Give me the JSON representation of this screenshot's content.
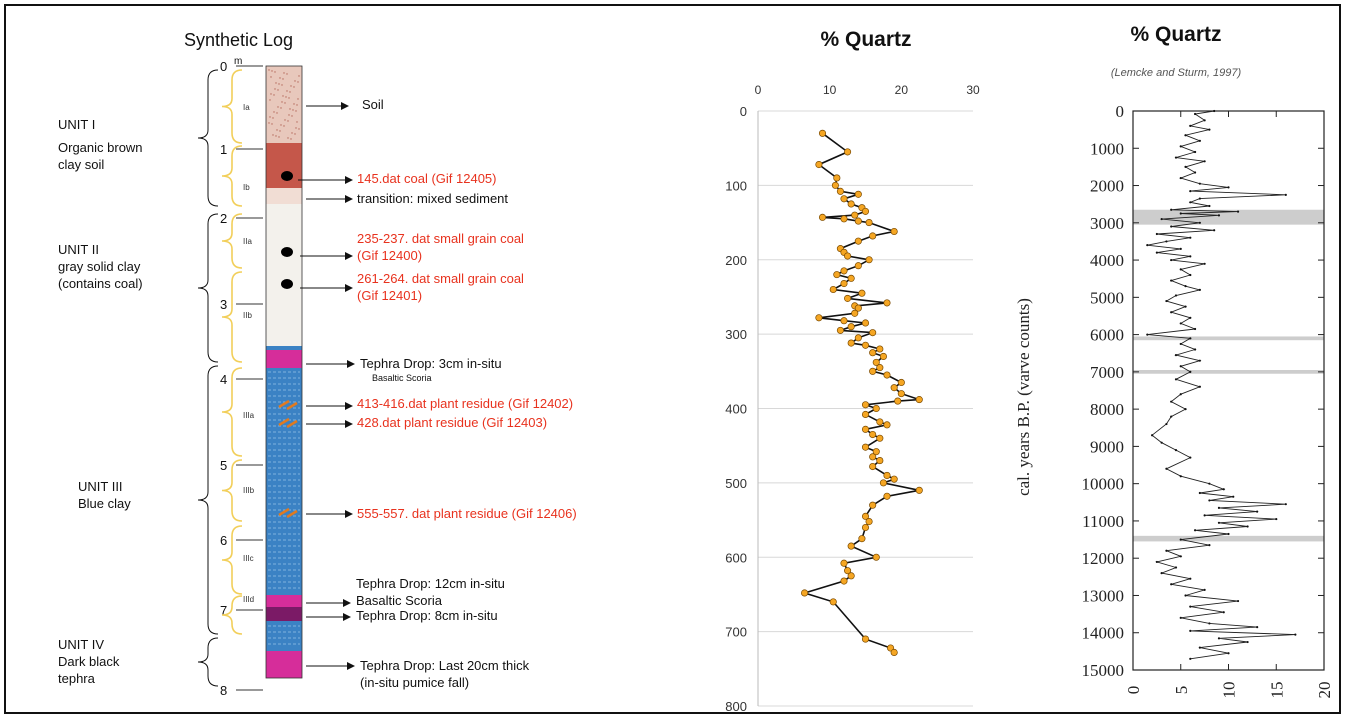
{
  "synthetic_log": {
    "title": "Synthetic Log",
    "unit_label": "m",
    "depth_ticks": [
      "0",
      "1",
      "2",
      "3",
      "4",
      "5",
      "6",
      "7",
      "8"
    ],
    "units": [
      {
        "lines": [
          "UNIT I",
          "Organic brown",
          "clay soil"
        ]
      },
      {
        "lines": [
          "UNIT II",
          "gray solid clay",
          "",
          "(contains coal)"
        ]
      },
      {
        "lines": [
          "UNIT III",
          "Blue clay"
        ]
      },
      {
        "lines": [
          "UNIT IV",
          "Dark black",
          "tephra"
        ]
      }
    ],
    "subunits": [
      "Ia",
      "Ib",
      "IIa",
      "IIb",
      "IIIa",
      "IIIb",
      "IIIc",
      "IIId"
    ],
    "annotations": [
      {
        "lines": [
          "Soil"
        ],
        "color": "#111111"
      },
      {
        "lines": [
          "145.dat coal (Gif 12405)"
        ],
        "color": "#e8321e"
      },
      {
        "lines": [
          "transition: mixed sediment"
        ],
        "color": "#111111"
      },
      {
        "lines": [
          "235-237. dat small grain coal",
          "(Gif 12400)"
        ],
        "color": "#e8321e"
      },
      {
        "lines": [
          "261-264. dat small grain coal",
          "(Gif 12401)"
        ],
        "color": "#e8321e"
      },
      {
        "lines": [
          "Tephra Drop: 3cm in-situ"
        ],
        "sub": "Basaltic Scoria",
        "color": "#111111"
      },
      {
        "lines": [
          "413-416.dat plant residue (Gif 12402)"
        ],
        "color": "#e8321e"
      },
      {
        "lines": [
          "428.dat plant residue (Gif 12403)"
        ],
        "color": "#e8321e"
      },
      {
        "lines": [
          "555-557. dat plant residue (Gif 12406)"
        ],
        "color": "#e8321e"
      },
      {
        "lines": [
          "Tephra Drop: 12cm in-situ",
          "Basaltic Scoria"
        ],
        "color": "#111111"
      },
      {
        "lines": [
          "Tephra Drop: 8cm in-situ"
        ],
        "color": "#111111"
      },
      {
        "lines": [
          "Tephra Drop: Last 20cm thick",
          " (in-situ pumice fall)"
        ],
        "color": "#111111"
      }
    ],
    "colors": {
      "soil": "#e8c8bc",
      "coal_layer": "#c5574a",
      "transition": "#f1ddd4",
      "gray_clay": "#f3f1ec",
      "blue_clay": "#3b82c4",
      "tephra": "#d62d9a",
      "dark_tephra": "#7b1a66",
      "bracket": "#f2cf5a",
      "plant": "#e07a1f"
    }
  },
  "chart_data": [
    {
      "type": "line",
      "title": "% Quartz",
      "xlabel": "",
      "ylabel": "",
      "xlim": [
        0,
        30
      ],
      "ylim": [
        0,
        800
      ],
      "y_inverted": true,
      "x_ticks": [
        "0",
        "10",
        "20",
        "30"
      ],
      "y_ticks": [
        "0",
        "100",
        "200",
        "300",
        "400",
        "500",
        "600",
        "700",
        "800"
      ],
      "grid": "horizontal",
      "marker_color": "#f5a623",
      "line_color": "#111111",
      "points": [
        {
          "x": 9,
          "y": 30
        },
        {
          "x": 12.5,
          "y": 55
        },
        {
          "x": 8.5,
          "y": 72
        },
        {
          "x": 11,
          "y": 90
        },
        {
          "x": 10.8,
          "y": 100
        },
        {
          "x": 11.5,
          "y": 108
        },
        {
          "x": 14,
          "y": 112
        },
        {
          "x": 12,
          "y": 118
        },
        {
          "x": 13,
          "y": 125
        },
        {
          "x": 14.5,
          "y": 130
        },
        {
          "x": 15,
          "y": 135
        },
        {
          "x": 13.5,
          "y": 140
        },
        {
          "x": 9,
          "y": 143
        },
        {
          "x": 12,
          "y": 145
        },
        {
          "x": 14,
          "y": 148
        },
        {
          "x": 15.5,
          "y": 150
        },
        {
          "x": 19,
          "y": 162
        },
        {
          "x": 16,
          "y": 168
        },
        {
          "x": 14,
          "y": 175
        },
        {
          "x": 11.5,
          "y": 185
        },
        {
          "x": 12,
          "y": 190
        },
        {
          "x": 12.5,
          "y": 195
        },
        {
          "x": 15.5,
          "y": 200
        },
        {
          "x": 14,
          "y": 208
        },
        {
          "x": 12,
          "y": 215
        },
        {
          "x": 11,
          "y": 220
        },
        {
          "x": 13,
          "y": 225
        },
        {
          "x": 12,
          "y": 232
        },
        {
          "x": 10.5,
          "y": 240
        },
        {
          "x": 14.5,
          "y": 245
        },
        {
          "x": 12.5,
          "y": 252
        },
        {
          "x": 18,
          "y": 258
        },
        {
          "x": 13.5,
          "y": 262
        },
        {
          "x": 14,
          "y": 265
        },
        {
          "x": 13.5,
          "y": 272
        },
        {
          "x": 8.5,
          "y": 278
        },
        {
          "x": 12,
          "y": 282
        },
        {
          "x": 15,
          "y": 285
        },
        {
          "x": 13,
          "y": 290
        },
        {
          "x": 11.5,
          "y": 295
        },
        {
          "x": 16,
          "y": 298
        },
        {
          "x": 14,
          "y": 305
        },
        {
          "x": 13,
          "y": 312
        },
        {
          "x": 15,
          "y": 315
        },
        {
          "x": 17,
          "y": 320
        },
        {
          "x": 16,
          "y": 325
        },
        {
          "x": 17.5,
          "y": 330
        },
        {
          "x": 16.5,
          "y": 338
        },
        {
          "x": 17,
          "y": 345
        },
        {
          "x": 16,
          "y": 350
        },
        {
          "x": 18,
          "y": 355
        },
        {
          "x": 20,
          "y": 365
        },
        {
          "x": 19,
          "y": 372
        },
        {
          "x": 20,
          "y": 380
        },
        {
          "x": 22.5,
          "y": 388
        },
        {
          "x": 19.5,
          "y": 390
        },
        {
          "x": 15,
          "y": 395
        },
        {
          "x": 16.5,
          "y": 400
        },
        {
          "x": 15,
          "y": 408
        },
        {
          "x": 17,
          "y": 418
        },
        {
          "x": 18,
          "y": 422
        },
        {
          "x": 15,
          "y": 428
        },
        {
          "x": 16,
          "y": 435
        },
        {
          "x": 17,
          "y": 440
        },
        {
          "x": 15,
          "y": 452
        },
        {
          "x": 16.5,
          "y": 458
        },
        {
          "x": 16,
          "y": 465
        },
        {
          "x": 17,
          "y": 470
        },
        {
          "x": 16,
          "y": 478
        },
        {
          "x": 18,
          "y": 490
        },
        {
          "x": 19,
          "y": 495
        },
        {
          "x": 17.5,
          "y": 500
        },
        {
          "x": 22.5,
          "y": 510
        },
        {
          "x": 18,
          "y": 518
        },
        {
          "x": 16,
          "y": 530
        },
        {
          "x": 15,
          "y": 545
        },
        {
          "x": 15.5,
          "y": 552
        },
        {
          "x": 15,
          "y": 560
        },
        {
          "x": 14.5,
          "y": 575
        },
        {
          "x": 13,
          "y": 585
        },
        {
          "x": 16.5,
          "y": 600
        },
        {
          "x": 12,
          "y": 608
        },
        {
          "x": 12.5,
          "y": 618
        },
        {
          "x": 13,
          "y": 625
        },
        {
          "x": 12,
          "y": 632
        },
        {
          "x": 6.5,
          "y": 648
        },
        {
          "x": 10.5,
          "y": 660
        },
        {
          "x": 15,
          "y": 710
        },
        {
          "x": 18.5,
          "y": 722
        },
        {
          "x": 19,
          "y": 728
        }
      ]
    },
    {
      "type": "line",
      "title": "% Quartz",
      "subtitle": "(Lemcke and Sturm, 1997)",
      "xlabel": "",
      "ylabel": "cal. years B.P. (varve counts)",
      "xlim": [
        0,
        20
      ],
      "ylim": [
        0,
        15000
      ],
      "y_inverted": true,
      "x_ticks": [
        "0",
        "5",
        "10",
        "15",
        "20"
      ],
      "y_ticks": [
        "0",
        "1000",
        "2000",
        "3000",
        "4000",
        "5000",
        "6000",
        "7000",
        "8000",
        "9000",
        "10000",
        "11000",
        "12000",
        "13000",
        "14000",
        "15000"
      ],
      "shaded_bands": [
        [
          2650,
          3050
        ],
        [
          6050,
          6150
        ],
        [
          6950,
          7050
        ],
        [
          11400,
          11550
        ]
      ],
      "grid": "none",
      "points": [
        {
          "x": 8.5,
          "y": 0
        },
        {
          "x": 6.5,
          "y": 80
        },
        {
          "x": 7.5,
          "y": 250
        },
        {
          "x": 6,
          "y": 400
        },
        {
          "x": 8,
          "y": 500
        },
        {
          "x": 5.5,
          "y": 650
        },
        {
          "x": 7,
          "y": 800
        },
        {
          "x": 5,
          "y": 950
        },
        {
          "x": 6.5,
          "y": 1100
        },
        {
          "x": 4.5,
          "y": 1250
        },
        {
          "x": 7.5,
          "y": 1350
        },
        {
          "x": 5.5,
          "y": 1500
        },
        {
          "x": 6.5,
          "y": 1650
        },
        {
          "x": 5,
          "y": 1800
        },
        {
          "x": 7,
          "y": 1950
        },
        {
          "x": 10,
          "y": 2050
        },
        {
          "x": 6,
          "y": 2150
        },
        {
          "x": 16,
          "y": 2250
        },
        {
          "x": 7,
          "y": 2350
        },
        {
          "x": 6,
          "y": 2450
        },
        {
          "x": 8,
          "y": 2550
        },
        {
          "x": 4,
          "y": 2650
        },
        {
          "x": 11,
          "y": 2700
        },
        {
          "x": 5,
          "y": 2750
        },
        {
          "x": 9,
          "y": 2800
        },
        {
          "x": 3,
          "y": 2900
        },
        {
          "x": 7,
          "y": 3000
        },
        {
          "x": 4,
          "y": 3100
        },
        {
          "x": 8.5,
          "y": 3200
        },
        {
          "x": 2.5,
          "y": 3300
        },
        {
          "x": 6,
          "y": 3400
        },
        {
          "x": 3.5,
          "y": 3500
        },
        {
          "x": 1.5,
          "y": 3600
        },
        {
          "x": 5,
          "y": 3700
        },
        {
          "x": 2.5,
          "y": 3800
        },
        {
          "x": 6,
          "y": 3900
        },
        {
          "x": 4,
          "y": 4000
        },
        {
          "x": 7.5,
          "y": 4100
        },
        {
          "x": 5,
          "y": 4250
        },
        {
          "x": 6,
          "y": 4400
        },
        {
          "x": 4,
          "y": 4550
        },
        {
          "x": 5.5,
          "y": 4700
        },
        {
          "x": 7,
          "y": 4800
        },
        {
          "x": 4.5,
          "y": 4950
        },
        {
          "x": 3.5,
          "y": 5100
        },
        {
          "x": 5.5,
          "y": 5250
        },
        {
          "x": 4,
          "y": 5400
        },
        {
          "x": 6,
          "y": 5550
        },
        {
          "x": 5,
          "y": 5700
        },
        {
          "x": 6.5,
          "y": 5850
        },
        {
          "x": 1.5,
          "y": 6000
        },
        {
          "x": 6,
          "y": 6100
        },
        {
          "x": 5,
          "y": 6250
        },
        {
          "x": 6.5,
          "y": 6400
        },
        {
          "x": 4.5,
          "y": 6550
        },
        {
          "x": 7,
          "y": 6700
        },
        {
          "x": 5,
          "y": 6850
        },
        {
          "x": 6,
          "y": 7000
        },
        {
          "x": 4.5,
          "y": 7200
        },
        {
          "x": 7,
          "y": 7400
        },
        {
          "x": 5,
          "y": 7600
        },
        {
          "x": 4,
          "y": 7800
        },
        {
          "x": 5.5,
          "y": 8000
        },
        {
          "x": 4,
          "y": 8200
        },
        {
          "x": 3.5,
          "y": 8400
        },
        {
          "x": 2,
          "y": 8700
        },
        {
          "x": 3,
          "y": 8900
        },
        {
          "x": 4.5,
          "y": 9100
        },
        {
          "x": 6,
          "y": 9300
        },
        {
          "x": 3.5,
          "y": 9600
        },
        {
          "x": 5,
          "y": 9800
        },
        {
          "x": 8,
          "y": 10000
        },
        {
          "x": 9.5,
          "y": 10150
        },
        {
          "x": 7,
          "y": 10250
        },
        {
          "x": 10.5,
          "y": 10350
        },
        {
          "x": 8,
          "y": 10450
        },
        {
          "x": 16,
          "y": 10550
        },
        {
          "x": 9,
          "y": 10650
        },
        {
          "x": 13,
          "y": 10750
        },
        {
          "x": 7.5,
          "y": 10850
        },
        {
          "x": 15,
          "y": 10950
        },
        {
          "x": 9,
          "y": 11050
        },
        {
          "x": 12,
          "y": 11150
        },
        {
          "x": 6.5,
          "y": 11250
        },
        {
          "x": 10,
          "y": 11350
        },
        {
          "x": 5,
          "y": 11500
        },
        {
          "x": 8,
          "y": 11650
        },
        {
          "x": 3.5,
          "y": 11800
        },
        {
          "x": 5,
          "y": 11950
        },
        {
          "x": 2.5,
          "y": 12100
        },
        {
          "x": 4.5,
          "y": 12250
        },
        {
          "x": 3,
          "y": 12400
        },
        {
          "x": 6,
          "y": 12550
        },
        {
          "x": 4,
          "y": 12700
        },
        {
          "x": 7.5,
          "y": 12850
        },
        {
          "x": 5.5,
          "y": 13000
        },
        {
          "x": 11,
          "y": 13150
        },
        {
          "x": 6,
          "y": 13300
        },
        {
          "x": 9.5,
          "y": 13450
        },
        {
          "x": 5,
          "y": 13600
        },
        {
          "x": 8,
          "y": 13750
        },
        {
          "x": 13,
          "y": 13850
        },
        {
          "x": 6,
          "y": 13950
        },
        {
          "x": 17,
          "y": 14050
        },
        {
          "x": 9,
          "y": 14150
        },
        {
          "x": 12,
          "y": 14250
        },
        {
          "x": 7,
          "y": 14400
        },
        {
          "x": 10,
          "y": 14550
        },
        {
          "x": 6,
          "y": 14700
        }
      ]
    }
  ]
}
